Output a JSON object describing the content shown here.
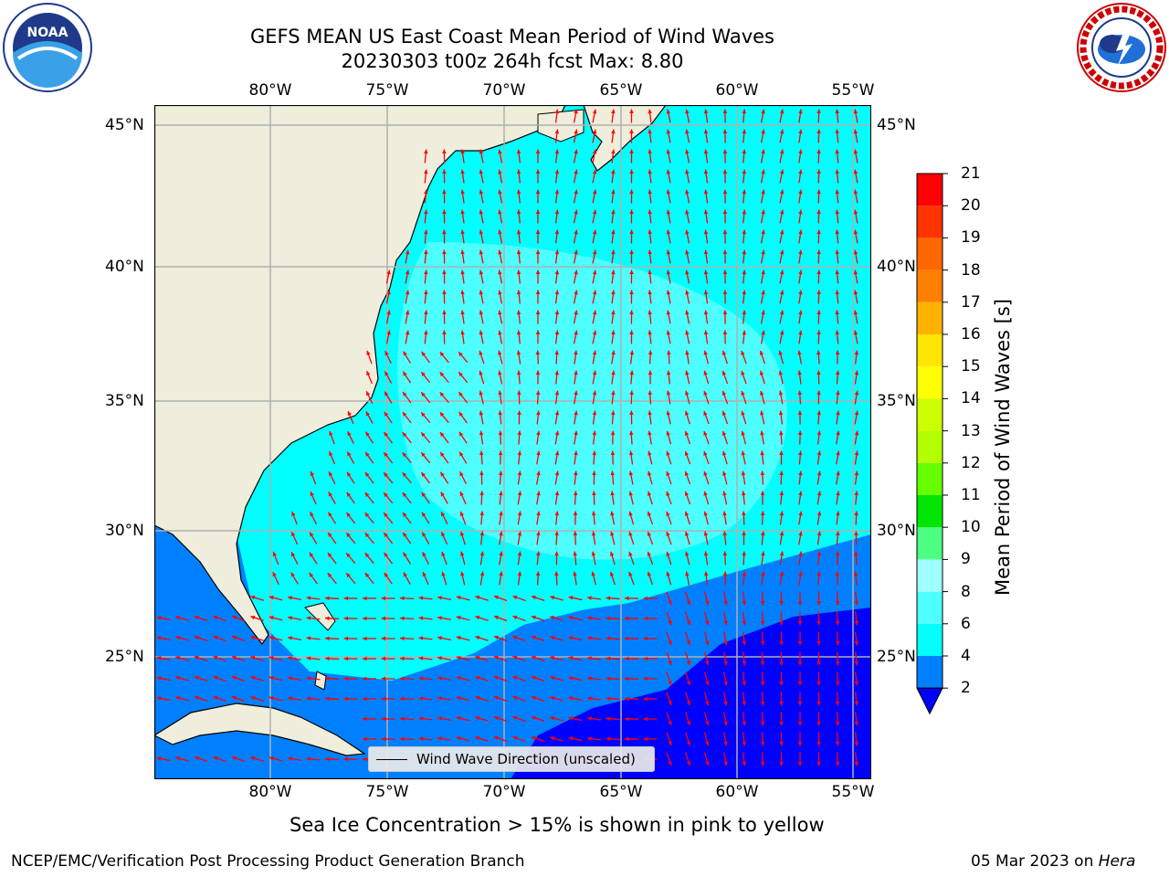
{
  "header": {
    "title_line1": "GEFS MEAN US East Coast Mean Period of Wind Waves",
    "title_line2": "20230303 t00z 264h fcst   Max: 8.80"
  },
  "logos": {
    "left": {
      "icon": "noaa-logo",
      "text": "NOAA"
    },
    "right": {
      "icon": "national-weather-service-logo",
      "text": "NATIONAL WEATHER SERVICE"
    }
  },
  "map": {
    "lon_labels": [
      "80°W",
      "75°W",
      "70°W",
      "65°W",
      "60°W",
      "55°W"
    ],
    "lat_labels": [
      "45°N",
      "40°N",
      "35°N",
      "30°N",
      "25°N"
    ],
    "colors": {
      "land": "#efeddb",
      "grid": "#b0b0b0",
      "arrow": "#ff0000"
    }
  },
  "legend": {
    "label": "Wind Wave Direction (unscaled)"
  },
  "colorbar": {
    "label": "Mean Period of Wind Waves [s]",
    "ticks": [
      "2",
      "4",
      "6",
      "8",
      "9",
      "10",
      "11",
      "12",
      "13",
      "14",
      "15",
      "16",
      "17",
      "18",
      "19",
      "20",
      "21"
    ],
    "colors": [
      "#0000ff",
      "#0080ff",
      "#00ffff",
      "#4dffff",
      "#a0ffff",
      "#4cff80",
      "#00e600",
      "#66ff00",
      "#b3ff00",
      "#ccff00",
      "#ffff00",
      "#ffe600",
      "#ffb300",
      "#ff8000",
      "#ff6600",
      "#ff3300",
      "#ff0000"
    ]
  },
  "notes": {
    "sea_ice": "Sea Ice Concentration > 15% is shown in pink to yellow",
    "footer_left": "NCEP/EMC/Verification Post Processing Product Generation Branch",
    "footer_date": "05 Mar 2023 on ",
    "footer_machine": "Hera"
  }
}
